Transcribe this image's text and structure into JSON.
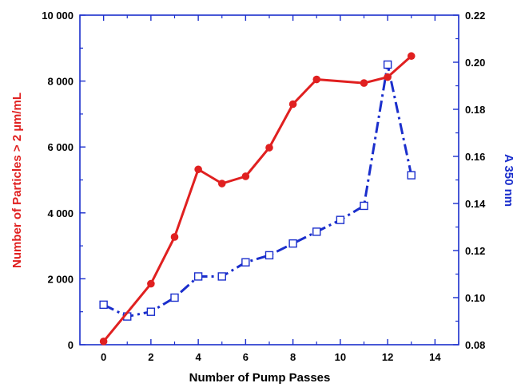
{
  "chart_data": {
    "type": "line",
    "xlabel": "Number of Pump Passes",
    "ylabel_left": "Number of Particles > 2 µm/mL",
    "ylabel_right": "A 350 nm",
    "xlim": [
      -1,
      15
    ],
    "ylim_left": [
      0,
      10000
    ],
    "ylim_right": [
      0.08,
      0.22
    ],
    "x_ticks": [
      0,
      2,
      4,
      6,
      8,
      10,
      12,
      14
    ],
    "x_tick_labels": [
      "0",
      "2",
      "4",
      "6",
      "8",
      "10",
      "12",
      "14"
    ],
    "y_left_ticks": [
      0,
      2000,
      4000,
      6000,
      8000,
      10000
    ],
    "y_left_tick_labels": [
      "0",
      "2 000",
      "4 000",
      "6 000",
      "8 000",
      "10 000"
    ],
    "y_right_ticks": [
      0.08,
      0.1,
      0.12,
      0.14,
      0.16,
      0.18,
      0.2,
      0.22
    ],
    "y_right_tick_labels": [
      "0.08",
      "0.10",
      "0.12",
      "0.14",
      "0.16",
      "0.18",
      "0.20",
      "0.22"
    ],
    "grid": false,
    "colors": {
      "left_axis": "#e02020",
      "right_axis": "#1a2ecc",
      "frame": "#1a2ecc"
    },
    "series": [
      {
        "axis": "left",
        "color": "#e02020",
        "style": "solid",
        "marker": "filled-circle",
        "x": [
          0,
          2,
          3,
          4,
          5,
          6,
          7,
          8,
          9,
          11,
          12,
          13
        ],
        "y": [
          100,
          1850,
          3270,
          5320,
          4890,
          5110,
          5980,
          7300,
          8050,
          7940,
          8120,
          8760
        ]
      },
      {
        "axis": "right",
        "color": "#1a2ecc",
        "style": "dash-dot",
        "marker": "open-square",
        "x": [
          0,
          1,
          2,
          3,
          4,
          5,
          6,
          7,
          8,
          9,
          10,
          11,
          12,
          13
        ],
        "y": [
          0.097,
          0.092,
          0.094,
          0.1,
          0.109,
          0.109,
          0.115,
          0.118,
          0.123,
          0.128,
          0.133,
          0.139,
          0.199,
          0.152
        ]
      }
    ]
  }
}
